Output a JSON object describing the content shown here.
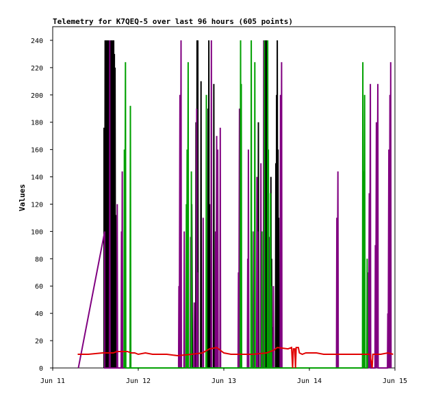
{
  "chart_data": {
    "type": "line",
    "title": "Telemetry for K7QEQ-5 over last 96 hours (605 points)",
    "xlabel": "",
    "ylabel": "Values",
    "ylim": [
      0,
      250
    ],
    "yticks": [
      0,
      20,
      40,
      60,
      80,
      100,
      120,
      140,
      160,
      180,
      200,
      220,
      240
    ],
    "xlim": [
      0,
      96
    ],
    "xticks": [
      {
        "label": "Jun 11",
        "x": 0
      },
      {
        "label": "Jun 12",
        "x": 24
      },
      {
        "label": "Jun 13",
        "x": 48
      },
      {
        "label": "Jun 14",
        "x": 72
      },
      {
        "label": "Jun 15",
        "x": 96
      }
    ],
    "grid": false,
    "legend": "none",
    "series": [
      {
        "color": "#000000",
        "width": 2,
        "points": [
          [
            14.4,
            0
          ],
          [
            14.4,
            176
          ],
          [
            14.6,
            0
          ],
          [
            14.7,
            240
          ],
          [
            14.8,
            0
          ],
          [
            14.9,
            240
          ],
          [
            15.0,
            0
          ],
          [
            15.1,
            240
          ],
          [
            15.2,
            0
          ],
          [
            15.3,
            240
          ],
          [
            15.4,
            0
          ],
          [
            15.5,
            240
          ],
          [
            15.6,
            0
          ],
          [
            15.7,
            240
          ],
          [
            15.8,
            0
          ],
          [
            15.9,
            240
          ],
          [
            16.0,
            0
          ],
          [
            16.1,
            240
          ],
          [
            16.2,
            0
          ],
          [
            16.3,
            240
          ],
          [
            16.4,
            0
          ],
          [
            16.5,
            240
          ],
          [
            16.6,
            0
          ],
          [
            16.7,
            240
          ],
          [
            16.8,
            0
          ],
          [
            16.9,
            240
          ],
          [
            17.0,
            0
          ],
          [
            17.1,
            240
          ],
          [
            17.2,
            0
          ],
          [
            17.3,
            230
          ],
          [
            17.4,
            0
          ],
          [
            17.5,
            220
          ],
          [
            17.6,
            0
          ],
          [
            17.7,
            112
          ],
          [
            17.8,
            0
          ],
          [
            39.0,
            0
          ],
          [
            39.0,
            120
          ],
          [
            39.2,
            0
          ],
          [
            40.1,
            0
          ],
          [
            40.2,
            180
          ],
          [
            40.4,
            0
          ],
          [
            40.5,
            240
          ],
          [
            40.6,
            0
          ],
          [
            40.7,
            240
          ],
          [
            40.8,
            0
          ],
          [
            41.5,
            0
          ],
          [
            41.6,
            210
          ],
          [
            41.7,
            0
          ],
          [
            43.5,
            0
          ],
          [
            43.6,
            190
          ],
          [
            43.7,
            0
          ],
          [
            43.8,
            240
          ],
          [
            43.9,
            0
          ],
          [
            44.0,
            120
          ],
          [
            44.1,
            0
          ],
          [
            45.1,
            0
          ],
          [
            45.2,
            208
          ],
          [
            45.3,
            0
          ],
          [
            57.6,
            0
          ],
          [
            57.7,
            180
          ],
          [
            57.8,
            0
          ],
          [
            59.4,
            0
          ],
          [
            59.5,
            220
          ],
          [
            59.6,
            0
          ],
          [
            59.7,
            240
          ],
          [
            59.8,
            0
          ],
          [
            59.9,
            240
          ],
          [
            60.0,
            0
          ],
          [
            60.1,
            160
          ],
          [
            60.2,
            0
          ],
          [
            60.3,
            120
          ],
          [
            60.4,
            0
          ],
          [
            61.1,
            0
          ],
          [
            61.2,
            140
          ],
          [
            61.3,
            0
          ],
          [
            61.4,
            80
          ],
          [
            61.5,
            0
          ],
          [
            61.6,
            30
          ],
          [
            61.7,
            0
          ],
          [
            62.5,
            0
          ],
          [
            62.6,
            150
          ],
          [
            62.7,
            0
          ],
          [
            62.8,
            200
          ],
          [
            62.9,
            0
          ],
          [
            63.0,
            240
          ],
          [
            63.1,
            0
          ],
          [
            63.2,
            160
          ],
          [
            63.3,
            0
          ],
          [
            63.4,
            110
          ],
          [
            63.5,
            0
          ],
          [
            63.6,
            40
          ],
          [
            63.7,
            0
          ]
        ]
      },
      {
        "color": "#800080",
        "width": 2,
        "points": [
          [
            7.2,
            0
          ],
          [
            14.6,
            100
          ],
          [
            14.6,
            0
          ],
          [
            15.9,
            0
          ],
          [
            16.0,
            240
          ],
          [
            16.1,
            0
          ],
          [
            18.0,
            0
          ],
          [
            18.1,
            120
          ],
          [
            18.2,
            0
          ],
          [
            19.2,
            0
          ],
          [
            19.3,
            100
          ],
          [
            19.4,
            0
          ],
          [
            19.5,
            144
          ],
          [
            19.6,
            0
          ],
          [
            35.3,
            0
          ],
          [
            35.4,
            60
          ],
          [
            35.5,
            0
          ],
          [
            35.7,
            200
          ],
          [
            35.8,
            0
          ],
          [
            36.0,
            240
          ],
          [
            36.1,
            0
          ],
          [
            36.8,
            0
          ],
          [
            36.9,
            100
          ],
          [
            37.0,
            0
          ],
          [
            38.6,
            0
          ],
          [
            38.7,
            96
          ],
          [
            38.8,
            0
          ],
          [
            39.6,
            0
          ],
          [
            39.7,
            48
          ],
          [
            39.8,
            0
          ],
          [
            40.3,
            0
          ],
          [
            40.4,
            190
          ],
          [
            40.5,
            0
          ],
          [
            40.6,
            70
          ],
          [
            40.7,
            0
          ],
          [
            42.1,
            0
          ],
          [
            42.2,
            110
          ],
          [
            42.3,
            0
          ],
          [
            44.4,
            0
          ],
          [
            44.5,
            240
          ],
          [
            44.6,
            0
          ],
          [
            45.6,
            0
          ],
          [
            45.7,
            100
          ],
          [
            45.8,
            0
          ],
          [
            46.0,
            170
          ],
          [
            46.1,
            0
          ],
          [
            46.3,
            160
          ],
          [
            46.4,
            0
          ],
          [
            46.9,
            0
          ],
          [
            47.0,
            176
          ],
          [
            47.1,
            0
          ],
          [
            52.0,
            0
          ],
          [
            52.1,
            70
          ],
          [
            52.2,
            0
          ],
          [
            52.4,
            190
          ],
          [
            52.5,
            0
          ],
          [
            54.6,
            0
          ],
          [
            54.7,
            80
          ],
          [
            54.8,
            0
          ],
          [
            54.9,
            160
          ],
          [
            55.0,
            0
          ],
          [
            56.3,
            0
          ],
          [
            56.4,
            100
          ],
          [
            56.5,
            0
          ],
          [
            57.2,
            0
          ],
          [
            57.3,
            140
          ],
          [
            57.4,
            0
          ],
          [
            57.5,
            100
          ],
          [
            57.6,
            0
          ],
          [
            58.3,
            0
          ],
          [
            58.4,
            150
          ],
          [
            58.5,
            0
          ],
          [
            59.1,
            0
          ],
          [
            59.2,
            240
          ],
          [
            59.3,
            0
          ],
          [
            60.6,
            0
          ],
          [
            60.7,
            96
          ],
          [
            60.8,
            0
          ],
          [
            61.8,
            0
          ],
          [
            61.9,
            60
          ],
          [
            62.0,
            0
          ],
          [
            63.8,
            0
          ],
          [
            63.9,
            200
          ],
          [
            64.0,
            0
          ],
          [
            64.2,
            224
          ],
          [
            64.3,
            0
          ],
          [
            79.6,
            0
          ],
          [
            79.7,
            110
          ],
          [
            79.8,
            0
          ],
          [
            80.0,
            144
          ],
          [
            80.1,
            0
          ],
          [
            88.4,
            0
          ],
          [
            88.5,
            70
          ],
          [
            88.6,
            0
          ],
          [
            88.8,
            128
          ],
          [
            88.9,
            0
          ],
          [
            89.1,
            208
          ],
          [
            89.2,
            0
          ],
          [
            90.4,
            0
          ],
          [
            90.5,
            90
          ],
          [
            90.6,
            0
          ],
          [
            90.8,
            180
          ],
          [
            90.9,
            0
          ],
          [
            91.2,
            208
          ],
          [
            91.3,
            0
          ],
          [
            93.9,
            0
          ],
          [
            94.0,
            40
          ],
          [
            94.1,
            0
          ],
          [
            94.3,
            160
          ],
          [
            94.4,
            0
          ],
          [
            94.6,
            200
          ],
          [
            94.7,
            0
          ],
          [
            94.8,
            224
          ],
          [
            94.9,
            0
          ]
        ]
      },
      {
        "color": "#00a000",
        "width": 2,
        "points": [
          [
            20.0,
            0
          ],
          [
            20.1,
            160
          ],
          [
            20.2,
            0
          ],
          [
            20.4,
            224
          ],
          [
            20.5,
            0
          ],
          [
            21.7,
            0
          ],
          [
            21.8,
            192
          ],
          [
            21.9,
            0
          ],
          [
            37.4,
            0
          ],
          [
            37.5,
            120
          ],
          [
            37.6,
            0
          ],
          [
            37.7,
            160
          ],
          [
            37.8,
            0
          ],
          [
            38.0,
            224
          ],
          [
            38.1,
            0
          ],
          [
            38.8,
            0
          ],
          [
            38.9,
            144
          ],
          [
            39.0,
            0
          ],
          [
            43.0,
            0
          ],
          [
            43.1,
            200
          ],
          [
            43.2,
            0
          ],
          [
            52.6,
            0
          ],
          [
            52.7,
            240
          ],
          [
            52.8,
            0
          ],
          [
            52.9,
            208
          ],
          [
            53.0,
            0
          ],
          [
            55.6,
            0
          ],
          [
            55.7,
            240
          ],
          [
            55.8,
            0
          ],
          [
            55.9,
            100
          ],
          [
            56.0,
            0
          ],
          [
            56.6,
            0
          ],
          [
            56.7,
            224
          ],
          [
            56.8,
            0
          ],
          [
            58.6,
            0
          ],
          [
            58.7,
            100
          ],
          [
            58.8,
            0
          ],
          [
            59.3,
            0
          ],
          [
            59.4,
            240
          ],
          [
            59.5,
            0
          ],
          [
            60.2,
            0
          ],
          [
            60.3,
            240
          ],
          [
            60.4,
            0
          ],
          [
            60.5,
            160
          ],
          [
            60.6,
            0
          ],
          [
            61.0,
            0
          ],
          [
            61.1,
            128
          ],
          [
            61.2,
            0
          ],
          [
            61.3,
            60
          ],
          [
            61.4,
            0
          ],
          [
            86.9,
            0
          ],
          [
            87.0,
            224
          ],
          [
            87.1,
            0
          ],
          [
            87.2,
            144
          ],
          [
            87.3,
            0
          ],
          [
            87.5,
            200
          ],
          [
            87.6,
            0
          ],
          [
            88.1,
            0
          ],
          [
            88.2,
            80
          ],
          [
            88.3,
            0
          ]
        ]
      },
      {
        "color": "#e00000",
        "width": 2,
        "points": [
          [
            7.0,
            10
          ],
          [
            10.0,
            10
          ],
          [
            14.0,
            11
          ],
          [
            17.0,
            11
          ],
          [
            18.0,
            12
          ],
          [
            21.0,
            12
          ],
          [
            22.0,
            11
          ],
          [
            23.0,
            11
          ],
          [
            24.0,
            10
          ],
          [
            26.0,
            11
          ],
          [
            28.0,
            10
          ],
          [
            32.0,
            10
          ],
          [
            35.0,
            9
          ],
          [
            39.0,
            10
          ],
          [
            42.0,
            11
          ],
          [
            44.0,
            14
          ],
          [
            46.0,
            15
          ],
          [
            47.0,
            13
          ],
          [
            48.0,
            11
          ],
          [
            50.0,
            10
          ],
          [
            56.0,
            10
          ],
          [
            60.0,
            11
          ],
          [
            62.0,
            13
          ],
          [
            63.0,
            15
          ],
          [
            66.0,
            14
          ],
          [
            67.0,
            15
          ],
          [
            67.3,
            0
          ],
          [
            67.5,
            14
          ],
          [
            67.9,
            14
          ],
          [
            68.1,
            0
          ],
          [
            68.3,
            15
          ],
          [
            68.9,
            15
          ],
          [
            69.2,
            11
          ],
          [
            70.0,
            10
          ],
          [
            71.0,
            11
          ],
          [
            74.0,
            11
          ],
          [
            76.0,
            10
          ],
          [
            80.0,
            10
          ],
          [
            84.0,
            10
          ],
          [
            88.0,
            10
          ],
          [
            89.0,
            10
          ],
          [
            89.6,
            0
          ],
          [
            89.8,
            10
          ],
          [
            92.0,
            10
          ],
          [
            94.0,
            11
          ],
          [
            95.5,
            10
          ]
        ]
      }
    ]
  }
}
